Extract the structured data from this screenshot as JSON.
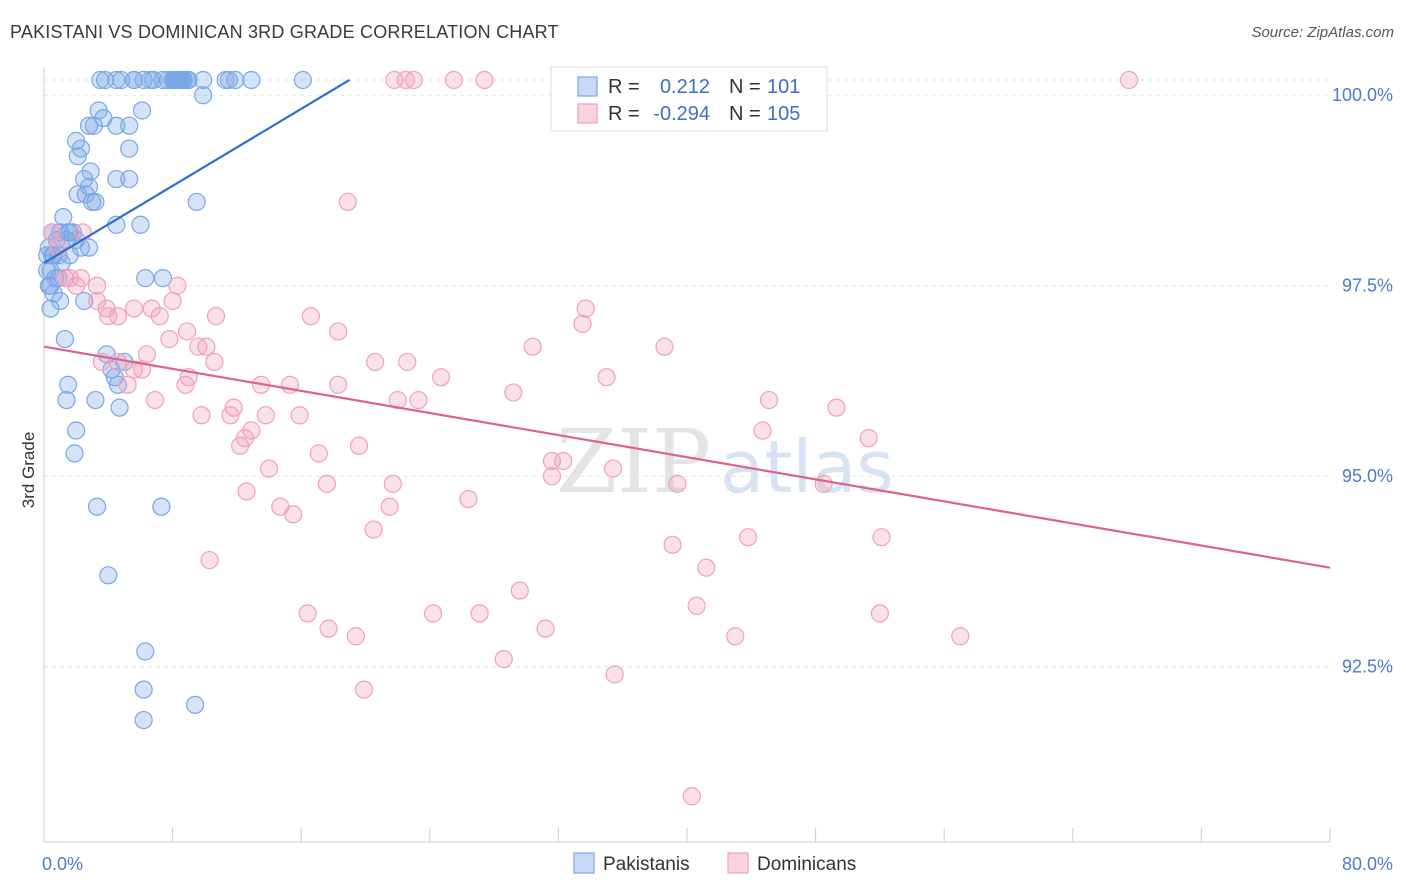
{
  "title": "PAKISTANI VS DOMINICAN 3RD GRADE CORRELATION CHART",
  "source": "Source: ZipAtlas.com",
  "watermark": {
    "zip": "ZIP",
    "atlas": "atlas"
  },
  "chart_data": {
    "type": "scatter",
    "xlabel": "",
    "ylabel": "3rd Grade",
    "xlim": [
      0,
      80
    ],
    "ylim": [
      90.2,
      100.2
    ],
    "x_tick_labels": [
      {
        "value": 0,
        "label": "0.0%"
      },
      {
        "value": 80,
        "label": "80.0%"
      }
    ],
    "y_tick_labels": [
      {
        "value": 100.0,
        "label": "100.0%"
      },
      {
        "value": 97.5,
        "label": "97.5%"
      },
      {
        "value": 95.0,
        "label": "95.0%"
      },
      {
        "value": 92.5,
        "label": "92.5%"
      }
    ],
    "x_minor_ticks": [
      0,
      8,
      16,
      24,
      32,
      40,
      48,
      56,
      64,
      72,
      80
    ],
    "legend": [
      {
        "name": "Pakistanis",
        "R_label": "R =",
        "R": "0.212",
        "N_label": "N =",
        "N": "101",
        "color": "#7aa7e6"
      },
      {
        "name": "Dominicans",
        "R_label": "R =",
        "R": "-0.294",
        "N_label": "N =",
        "N": "105",
        "color": "#f0a0bc"
      }
    ],
    "series": [
      {
        "name": "Pakistanis",
        "color": "#7aa7e6",
        "line_color": "#2e72cf",
        "trend": {
          "x0": 0,
          "y0": 97.8,
          "x1": 19,
          "y1": 100.2
        },
        "points": [
          [
            3.5,
            100.2
          ],
          [
            3.8,
            100.2
          ],
          [
            4.5,
            100.2
          ],
          [
            4.8,
            100.2
          ],
          [
            5.6,
            100.2
          ],
          [
            6.2,
            100.2
          ],
          [
            6.6,
            100.2
          ],
          [
            7.4,
            100.2
          ],
          [
            8.0,
            100.2
          ],
          [
            8.3,
            100.2
          ],
          [
            8.2,
            100.2
          ],
          [
            8.4,
            100.2
          ],
          [
            8.7,
            100.2
          ],
          [
            8.5,
            100.2
          ],
          [
            9.0,
            100.2
          ],
          [
            9.9,
            100.2
          ],
          [
            11.3,
            100.2
          ],
          [
            11.9,
            100.2
          ],
          [
            12.9,
            100.2
          ],
          [
            16.1,
            100.2
          ],
          [
            9.9,
            100.0
          ],
          [
            3.4,
            99.8
          ],
          [
            6.1,
            99.8
          ],
          [
            3.7,
            99.7
          ],
          [
            2.8,
            99.6
          ],
          [
            4.5,
            99.6
          ],
          [
            5.3,
            99.6
          ],
          [
            2.0,
            99.4
          ],
          [
            2.3,
            99.3
          ],
          [
            5.3,
            99.3
          ],
          [
            2.1,
            99.2
          ],
          [
            2.9,
            99.0
          ],
          [
            2.5,
            98.9
          ],
          [
            4.5,
            98.9
          ],
          [
            5.3,
            98.9
          ],
          [
            2.8,
            98.8
          ],
          [
            2.1,
            98.7
          ],
          [
            3.0,
            98.6
          ],
          [
            3.2,
            98.6
          ],
          [
            9.5,
            98.6
          ],
          [
            1.2,
            98.4
          ],
          [
            4.5,
            98.3
          ],
          [
            6.0,
            98.3
          ],
          [
            0.5,
            98.2
          ],
          [
            1.0,
            98.2
          ],
          [
            1.6,
            98.2
          ],
          [
            0.8,
            98.1
          ],
          [
            1.4,
            98.1
          ],
          [
            2.0,
            98.1
          ],
          [
            2.8,
            98.0
          ],
          [
            0.3,
            98.0
          ],
          [
            0.5,
            97.9
          ],
          [
            0.6,
            97.9
          ],
          [
            1.1,
            97.8
          ],
          [
            0.2,
            97.7
          ],
          [
            0.4,
            97.7
          ],
          [
            0.9,
            97.6
          ],
          [
            6.3,
            97.6
          ],
          [
            7.4,
            97.6
          ],
          [
            0.3,
            97.5
          ],
          [
            0.6,
            97.4
          ],
          [
            1.0,
            97.3
          ],
          [
            2.5,
            97.3
          ],
          [
            0.4,
            97.2
          ],
          [
            1.3,
            96.8
          ],
          [
            3.9,
            96.6
          ],
          [
            5.0,
            96.5
          ],
          [
            4.2,
            96.4
          ],
          [
            4.4,
            96.3
          ],
          [
            4.6,
            96.2
          ],
          [
            1.5,
            96.2
          ],
          [
            1.4,
            96.0
          ],
          [
            3.2,
            96.0
          ],
          [
            4.7,
            95.9
          ],
          [
            2.0,
            95.6
          ],
          [
            1.9,
            95.3
          ],
          [
            3.3,
            94.6
          ],
          [
            7.3,
            94.6
          ],
          [
            4.0,
            93.7
          ],
          [
            6.3,
            92.7
          ],
          [
            6.2,
            92.2
          ],
          [
            9.4,
            92.0
          ],
          [
            6.2,
            91.8
          ],
          [
            8.7,
            100.2
          ],
          [
            8.9,
            100.2
          ],
          [
            8.1,
            100.2
          ],
          [
            8.6,
            100.2
          ],
          [
            0.7,
            97.6
          ],
          [
            1.5,
            98.2
          ],
          [
            2.3,
            98.0
          ],
          [
            0.9,
            97.9
          ],
          [
            0.2,
            97.9
          ],
          [
            1.8,
            98.2
          ],
          [
            0.4,
            97.5
          ],
          [
            2.6,
            98.7
          ],
          [
            3.1,
            99.6
          ],
          [
            1.6,
            97.9
          ],
          [
            5.6,
            100.2
          ],
          [
            7.7,
            100.2
          ],
          [
            11.5,
            100.2
          ],
          [
            6.8,
            100.2
          ]
        ]
      },
      {
        "name": "Dominicans",
        "color": "#f0a0bc",
        "line_color": "#e0608e",
        "trend": {
          "x0": 0,
          "y0": 96.7,
          "x1": 80,
          "y1": 93.8
        },
        "points": [
          [
            21.8,
            100.2
          ],
          [
            22.5,
            100.2
          ],
          [
            23.0,
            100.2
          ],
          [
            25.5,
            100.2
          ],
          [
            27.4,
            100.2
          ],
          [
            33.2,
            100.2
          ],
          [
            67.5,
            100.2
          ],
          [
            18.9,
            98.6
          ],
          [
            0.5,
            98.2
          ],
          [
            0.9,
            98.0
          ],
          [
            1.3,
            97.6
          ],
          [
            2.3,
            97.6
          ],
          [
            2.0,
            97.5
          ],
          [
            3.3,
            97.5
          ],
          [
            8.3,
            97.5
          ],
          [
            8.0,
            97.3
          ],
          [
            3.3,
            97.3
          ],
          [
            3.9,
            97.2
          ],
          [
            4.6,
            97.1
          ],
          [
            5.6,
            97.2
          ],
          [
            6.7,
            97.2
          ],
          [
            10.7,
            97.1
          ],
          [
            16.6,
            97.1
          ],
          [
            33.7,
            97.2
          ],
          [
            33.5,
            97.0
          ],
          [
            7.2,
            97.1
          ],
          [
            8.9,
            96.9
          ],
          [
            18.3,
            96.9
          ],
          [
            9.6,
            96.7
          ],
          [
            10.1,
            96.7
          ],
          [
            30.4,
            96.7
          ],
          [
            38.6,
            96.7
          ],
          [
            10.6,
            96.5
          ],
          [
            20.6,
            96.5
          ],
          [
            22.6,
            96.5
          ],
          [
            3.6,
            96.5
          ],
          [
            5.6,
            96.4
          ],
          [
            6.1,
            96.4
          ],
          [
            24.7,
            96.3
          ],
          [
            35.0,
            96.3
          ],
          [
            13.5,
            96.2
          ],
          [
            15.3,
            96.2
          ],
          [
            18.3,
            96.2
          ],
          [
            5.2,
            96.2
          ],
          [
            6.9,
            96.0
          ],
          [
            8.8,
            96.2
          ],
          [
            29.2,
            96.1
          ],
          [
            22.0,
            96.0
          ],
          [
            23.3,
            96.0
          ],
          [
            45.1,
            96.0
          ],
          [
            11.8,
            95.9
          ],
          [
            49.3,
            95.9
          ],
          [
            15.9,
            95.8
          ],
          [
            9.8,
            95.8
          ],
          [
            11.6,
            95.8
          ],
          [
            13.8,
            95.8
          ],
          [
            12.9,
            95.6
          ],
          [
            44.7,
            95.6
          ],
          [
            51.3,
            95.5
          ],
          [
            12.2,
            95.4
          ],
          [
            12.5,
            95.5
          ],
          [
            19.6,
            95.4
          ],
          [
            17.1,
            95.3
          ],
          [
            31.6,
            95.2
          ],
          [
            32.3,
            95.2
          ],
          [
            35.4,
            95.1
          ],
          [
            14.0,
            95.1
          ],
          [
            31.6,
            95.0
          ],
          [
            39.4,
            94.9
          ],
          [
            17.6,
            94.9
          ],
          [
            21.7,
            94.9
          ],
          [
            48.5,
            94.9
          ],
          [
            12.6,
            94.8
          ],
          [
            26.4,
            94.7
          ],
          [
            14.7,
            94.6
          ],
          [
            21.5,
            94.6
          ],
          [
            15.5,
            94.5
          ],
          [
            20.5,
            94.3
          ],
          [
            43.8,
            94.2
          ],
          [
            52.1,
            94.2
          ],
          [
            39.1,
            94.1
          ],
          [
            10.3,
            93.9
          ],
          [
            41.2,
            93.8
          ],
          [
            29.6,
            93.5
          ],
          [
            40.6,
            93.3
          ],
          [
            24.2,
            93.2
          ],
          [
            27.1,
            93.2
          ],
          [
            16.4,
            93.2
          ],
          [
            52.0,
            93.2
          ],
          [
            31.2,
            93.0
          ],
          [
            17.7,
            93.0
          ],
          [
            19.4,
            92.9
          ],
          [
            43.0,
            92.9
          ],
          [
            57.0,
            92.9
          ],
          [
            28.6,
            92.6
          ],
          [
            35.5,
            92.4
          ],
          [
            19.9,
            92.2
          ],
          [
            40.3,
            90.8
          ],
          [
            2.4,
            98.2
          ],
          [
            4.0,
            97.1
          ],
          [
            1.6,
            97.6
          ],
          [
            4.6,
            96.5
          ],
          [
            6.4,
            96.6
          ],
          [
            9.0,
            96.3
          ],
          [
            7.8,
            96.8
          ]
        ]
      }
    ]
  }
}
